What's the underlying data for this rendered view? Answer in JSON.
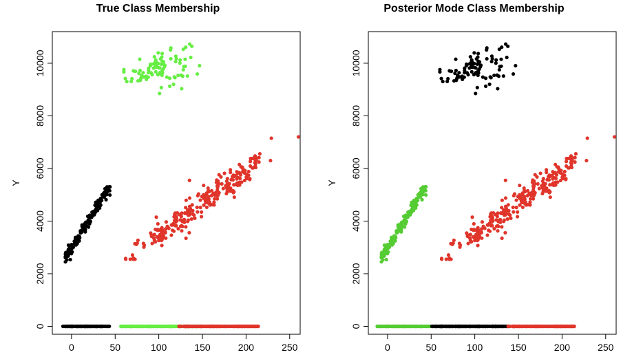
{
  "chart_data": [
    {
      "type": "scatter",
      "title": "True Class Membership",
      "xlabel": "",
      "ylabel": "Y",
      "xlim": [
        -22,
        262
      ],
      "ylim": [
        -300,
        11200
      ],
      "xticks": [
        0,
        50,
        100,
        150,
        200,
        250
      ],
      "yticks": [
        0,
        2000,
        4000,
        6000,
        8000,
        10000
      ],
      "colors": {
        "black": "#000000",
        "green": "#66ee44",
        "red": "#e0352b"
      },
      "clusters": {
        "top": {
          "color": "green",
          "x": [
            60,
            150
          ],
          "y": [
            8850,
            10900
          ],
          "n": 95
        },
        "steep": {
          "color": "black",
          "x": [
            -7,
            44
          ],
          "y": [
            2450,
            5300
          ],
          "n": 160
        },
        "diag": {
          "color": "red",
          "x": [
            62,
            260
          ],
          "y": [
            2550,
            7200
          ],
          "n": 260
        },
        "baseline": [
          {
            "color": "black",
            "x": [
              -10,
              44
            ]
          },
          {
            "color": "green",
            "x": [
              56,
              150
            ]
          },
          {
            "color": "red",
            "x": [
              123,
              214
            ]
          }
        ]
      }
    },
    {
      "type": "scatter",
      "title": "Posterior Mode Class Membership",
      "xlabel": "",
      "ylabel": "Y",
      "xlim": [
        -22,
        262
      ],
      "ylim": [
        -300,
        11200
      ],
      "xticks": [
        0,
        50,
        100,
        150,
        200,
        250
      ],
      "yticks": [
        0,
        2000,
        4000,
        6000,
        8000,
        10000
      ],
      "colors": {
        "black": "#000000",
        "green": "#55cc33",
        "red": "#e0352b"
      },
      "clusters": {
        "top": {
          "color": "black",
          "x": [
            60,
            150
          ],
          "y": [
            8850,
            10900
          ],
          "n": 95
        },
        "steep": {
          "color": "green",
          "x": [
            -7,
            44
          ],
          "y": [
            2450,
            5300
          ],
          "n": 160
        },
        "diag": {
          "color": "red",
          "x": [
            62,
            260
          ],
          "y": [
            2550,
            7200
          ],
          "n": 260
        },
        "baseline": [
          {
            "color": "green",
            "x": [
              -12,
              50
            ]
          },
          {
            "color": "black",
            "x": [
              50,
              138
            ]
          },
          {
            "color": "red",
            "x": [
              138,
              214
            ]
          }
        ]
      }
    }
  ]
}
